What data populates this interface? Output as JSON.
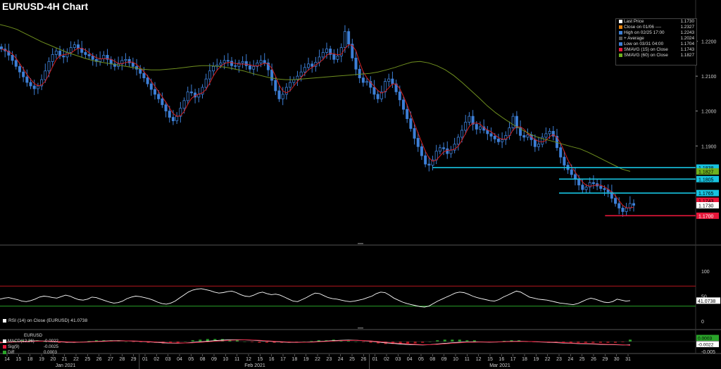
{
  "title": "EURUSD-4H Chart",
  "colors": {
    "bg": "#000000",
    "candle": "#3d7fd6",
    "sma15": "#d42020",
    "sma60": "#6f8f1f",
    "support": "#17c3e0",
    "low_line": "#e8173a",
    "rsi_band": "#b5151d",
    "rsi_lower": "#2aa42a",
    "text": "#cfcfcf"
  },
  "legend": {
    "items": [
      {
        "label": "Last Price",
        "value": "1.1730",
        "color": "#ffffff"
      },
      {
        "label": "Close on 01/06 ----",
        "value": "1.2327",
        "color": "#e8820c"
      },
      {
        "label": "High on 02/25 17:00",
        "value": "1.2243",
        "color": "#3d7fd6"
      },
      {
        "label": "+ Average",
        "value": "1.2024",
        "color": "#555555"
      },
      {
        "label": "Low on 03/31 04:00",
        "value": "1.1704",
        "color": "#3d7fd6"
      },
      {
        "label": "SMAVG (15)  on Close",
        "value": "1.1743",
        "color": "#e8173a"
      },
      {
        "label": "SMAVG (60)  on Close",
        "value": "1.1827",
        "color": "#6fb01f"
      }
    ]
  },
  "rsi_label": "RSI (14)  on Close (EURUSD) 41.0738",
  "macd_legend": {
    "title": "EURUSD",
    "items": [
      {
        "label": "MACD(12,26)",
        "value": "-0.0022",
        "color": "#ffffff"
      },
      {
        "label": "Sig(9)",
        "value": "-0.0025",
        "color": "#e8173a"
      },
      {
        "label": "Diff",
        "value": "0.0003",
        "color": "#2aa42a"
      }
    ]
  },
  "chart_data": {
    "type": "candlestick",
    "price_axis": {
      "ticks": [
        "1.2200",
        "1.2100",
        "1.2000",
        "1.1900"
      ],
      "range": [
        1.162,
        1.229
      ]
    },
    "price_tags": [
      {
        "label": "1.1838",
        "color": "#17c3e0",
        "text_color": "#000000"
      },
      {
        "label": "1.1827",
        "color": "#6fb01f",
        "text_color": "#000000"
      },
      {
        "label": "1.1805",
        "color": "#17c3e0",
        "text_color": "#000000"
      },
      {
        "label": "1.1765",
        "color": "#17c3e0",
        "text_color": "#000000"
      },
      {
        "label": "1.1743",
        "color": "#e8173a",
        "text_color": "#000000"
      },
      {
        "label": "1.1730",
        "color": "#ffffff",
        "text_color": "#000000"
      },
      {
        "label": "1.1700",
        "color": "#e8173a",
        "text_color": "#ffffff"
      }
    ],
    "support_lines": [
      {
        "start_date": "Mar 08",
        "level": 1.1838,
        "color": "#17c3e0"
      },
      {
        "start_date": "Mar 23",
        "level": 1.1805,
        "color": "#17c3e0"
      },
      {
        "start_date": "Mar 23",
        "level": 1.1765,
        "color": "#17c3e0"
      },
      {
        "start_date": "Mar 29",
        "level": 1.17,
        "color": "#e8173a"
      }
    ],
    "closes_path": [
      1.2178,
      1.2172,
      1.216,
      1.2145,
      1.2128,
      1.2112,
      1.2098,
      1.2082,
      1.2072,
      1.2064,
      1.2072,
      1.209,
      1.2115,
      1.2142,
      1.2162,
      1.2172,
      1.2158,
      1.2155,
      1.2168,
      1.2182,
      1.219,
      1.218,
      1.2168,
      1.2162,
      1.2158,
      1.2148,
      1.2142,
      1.215,
      1.216,
      1.2148,
      1.2135,
      1.2128,
      1.2135,
      1.2145,
      1.2148,
      1.2138,
      1.2128,
      1.212,
      1.2108,
      1.2095,
      1.2078,
      1.2062,
      1.2048,
      1.2035,
      1.2018,
      1.2,
      1.1982,
      1.1972,
      1.1985,
      1.2008,
      1.203,
      1.2055,
      1.2052,
      1.204,
      1.2048,
      1.2068,
      1.2092,
      1.2115,
      1.2128,
      1.2132,
      1.2138,
      1.2145,
      1.2143,
      1.213,
      1.2128,
      1.2138,
      1.2142,
      1.213,
      1.212,
      1.2128,
      1.2138,
      1.2145,
      1.2138,
      1.2118,
      1.2088,
      1.2058,
      1.2035,
      1.2048,
      1.2068,
      1.2082,
      1.209,
      1.21,
      1.2112,
      1.2125,
      1.2135,
      1.2128,
      1.214,
      1.2155,
      1.2168,
      1.2178,
      1.2162,
      1.2148,
      1.2158,
      1.2182,
      1.2228,
      1.2192,
      1.2152,
      1.212,
      1.2095,
      1.2082,
      1.2085,
      1.2068,
      1.2048,
      1.2035,
      1.2055,
      1.2085,
      1.2092,
      1.2078,
      1.2055,
      1.2032,
      1.2005,
      1.1978,
      1.195,
      1.1922,
      1.1898,
      1.1872,
      1.1848,
      1.1845,
      1.186,
      1.1885,
      1.1895,
      1.1892,
      1.1878,
      1.1888,
      1.1905,
      1.1925,
      1.1945,
      1.1968,
      1.1985,
      1.1962,
      1.1948,
      1.1955,
      1.1945,
      1.1935,
      1.1928,
      1.192,
      1.1912,
      1.1918,
      1.193,
      1.1952,
      1.1985,
      1.1952,
      1.193,
      1.1925,
      1.1932,
      1.1918,
      1.1898,
      1.1905,
      1.1925,
      1.1935,
      1.1942,
      1.1928,
      1.1895,
      1.1868,
      1.1845,
      1.1832,
      1.1818,
      1.1805,
      1.1788,
      1.1775,
      1.1782,
      1.1795,
      1.1792,
      1.1785,
      1.1778,
      1.1775,
      1.1768,
      1.175,
      1.1735,
      1.1722,
      1.1712,
      1.1722,
      1.1735,
      1.173
    ],
    "sma60_path": [
      1.2248,
      1.2242,
      1.2234,
      1.2222,
      1.221,
      1.2198,
      1.2188,
      1.2178,
      1.2168,
      1.216,
      1.2152,
      1.2145,
      1.214,
      1.2136,
      1.2132,
      1.2128,
      1.2124,
      1.212,
      1.2118,
      1.2118,
      1.212,
      1.2122,
      1.2125,
      1.2128,
      1.213,
      1.213,
      1.2128,
      1.2125,
      1.212,
      1.2115,
      1.2108,
      1.2102,
      1.2096,
      1.2092,
      1.209,
      1.209,
      1.2092,
      1.2094,
      1.2096,
      1.2098,
      1.21,
      1.2102,
      1.2104,
      1.2106,
      1.2108,
      1.2112,
      1.2118,
      1.2125,
      1.2133,
      1.214,
      1.2142,
      1.2138,
      1.213,
      1.2118,
      1.2102,
      1.2082,
      1.206,
      1.2038,
      1.2015,
      1.1995,
      1.1978,
      1.1962,
      1.1948,
      1.1935,
      1.1925,
      1.1918,
      1.1912,
      1.1905,
      1.1898,
      1.1892,
      1.1882,
      1.187,
      1.1858,
      1.1846,
      1.1834,
      1.1827
    ],
    "rsi_values": [
      44,
      46,
      47,
      45,
      43,
      40,
      39,
      41,
      44,
      48,
      50,
      49,
      47,
      46,
      49,
      52,
      50,
      46,
      43,
      42,
      44,
      48,
      47,
      44,
      41,
      38,
      36,
      37,
      40,
      45,
      48,
      50,
      49,
      47,
      45,
      42,
      38,
      35,
      34,
      36,
      40,
      46,
      52,
      58,
      62,
      64,
      65,
      63,
      61,
      58,
      56,
      57,
      59,
      60,
      57,
      53,
      50,
      49,
      52,
      56,
      58,
      55,
      53,
      54,
      52,
      48,
      44,
      40,
      39,
      43,
      47,
      52,
      56,
      55,
      51,
      47,
      45,
      44,
      42,
      40,
      39,
      40,
      42,
      44,
      47,
      50,
      55,
      58,
      57,
      52,
      46,
      42,
      38,
      35,
      33,
      31,
      29,
      28,
      30,
      35,
      40,
      44,
      48,
      52,
      56,
      58,
      57,
      54,
      50,
      47,
      45,
      43,
      41,
      40,
      43,
      48,
      52,
      56,
      60,
      58,
      53,
      48,
      46,
      44,
      43,
      42,
      40,
      38,
      36,
      35,
      34,
      33,
      35,
      39,
      43,
      46,
      44,
      41,
      38,
      37,
      39,
      44,
      42,
      40,
      41
    ],
    "macd_values": [
      -0.0008,
      -0.0005,
      -0.0002,
      0.0001,
      0.0003,
      0.0004,
      0.0003,
      0.0001,
      -0.0002,
      -0.0004,
      -0.0005,
      -0.0004,
      -0.0002,
      0.0001,
      0.0003,
      0.0005,
      0.0006,
      0.0005,
      0.0003,
      0.0001,
      -0.0002,
      -0.0005,
      -0.0008,
      -0.001,
      -0.0011,
      -0.0009,
      -0.0006,
      -0.0002,
      0.0002,
      0.0006,
      0.0009,
      0.0011,
      0.0012,
      0.0011,
      0.0009,
      0.0006,
      0.0003,
      0.0,
      -0.0003,
      -0.0005,
      -0.0006,
      -0.0005,
      -0.0003,
      0.0,
      0.0003,
      0.0006,
      0.0008,
      0.0009,
      0.0008,
      0.0006,
      0.0002,
      -0.0003,
      -0.0008,
      -0.0012,
      -0.0016,
      -0.0019,
      -0.0021,
      -0.0022,
      -0.002,
      -0.0016,
      -0.0012,
      -0.0008,
      -0.0005,
      -0.0003,
      -0.0002,
      -0.0003,
      -0.0004,
      -0.0003,
      -0.0001,
      0.0001,
      0.0002,
      0.0001,
      -0.0001,
      -0.0003,
      -0.0005,
      -0.0007,
      -0.0009,
      -0.0011,
      -0.0013,
      -0.0014,
      -0.0016,
      -0.0018,
      -0.002,
      -0.0021,
      -0.0022,
      -0.0022
    ],
    "sig_values": [
      -0.0006,
      -0.0005,
      -0.0003,
      -0.0001,
      0.0001,
      0.0002,
      0.0003,
      0.0002,
      0.0,
      -0.0002,
      -0.0003,
      -0.0004,
      -0.0003,
      -0.0001,
      0.0001,
      0.0003,
      0.0004,
      0.0005,
      0.0004,
      0.0002,
      0.0,
      -0.0003,
      -0.0005,
      -0.0008,
      -0.0009,
      -0.0009,
      -0.0008,
      -0.0005,
      -0.0002,
      0.0002,
      0.0005,
      0.0008,
      0.001,
      0.0011,
      0.001,
      0.0008,
      0.0005,
      0.0002,
      -0.0001,
      -0.0003,
      -0.0005,
      -0.0005,
      -0.0004,
      -0.0002,
      0.0001,
      0.0003,
      0.0006,
      0.0007,
      0.0008,
      0.0007,
      0.0004,
      0.0,
      -0.0004,
      -0.0008,
      -0.0012,
      -0.0015,
      -0.0018,
      -0.002,
      -0.002,
      -0.0018,
      -0.0015,
      -0.0011,
      -0.0008,
      -0.0005,
      -0.0004,
      -0.0003,
      -0.0003,
      -0.0003,
      -0.0002,
      -0.0001,
      0.0,
      0.0001,
      0.0,
      -0.0002,
      -0.0003,
      -0.0005,
      -0.0007,
      -0.0009,
      -0.0011,
      -0.0012,
      -0.0014,
      -0.0016,
      -0.0018,
      -0.0019,
      -0.0021,
      -0.0025
    ],
    "rsi_axis": {
      "ticks": [
        "100",
        "50",
        "0"
      ],
      "upper": 70,
      "lower": 30,
      "last_label": "41.0738"
    },
    "macd_axis": {
      "tags": [
        {
          "label": "0.0003",
          "color": "#2aa42a"
        },
        {
          "label": "-0.0022",
          "color": "#ffffff"
        }
      ],
      "tick": "-0.005"
    },
    "dates": [
      "14",
      "15",
      "18",
      "19",
      "20",
      "21",
      "22",
      "25",
      "26",
      "27",
      "28",
      "29",
      "01",
      "02",
      "03",
      "04",
      "05",
      "08",
      "09",
      "10",
      "11",
      "12",
      "15",
      "16",
      "17",
      "18",
      "19",
      "22",
      "23",
      "24",
      "25",
      "26",
      "01",
      "02",
      "03",
      "04",
      "05",
      "08",
      "09",
      "10",
      "11",
      "12",
      "15",
      "16",
      "17",
      "18",
      "19",
      "22",
      "23",
      "24",
      "25",
      "26",
      "29",
      "30",
      "31"
    ],
    "months": [
      "Jan 2021",
      "Feb 2021",
      "Mar 2021"
    ]
  }
}
